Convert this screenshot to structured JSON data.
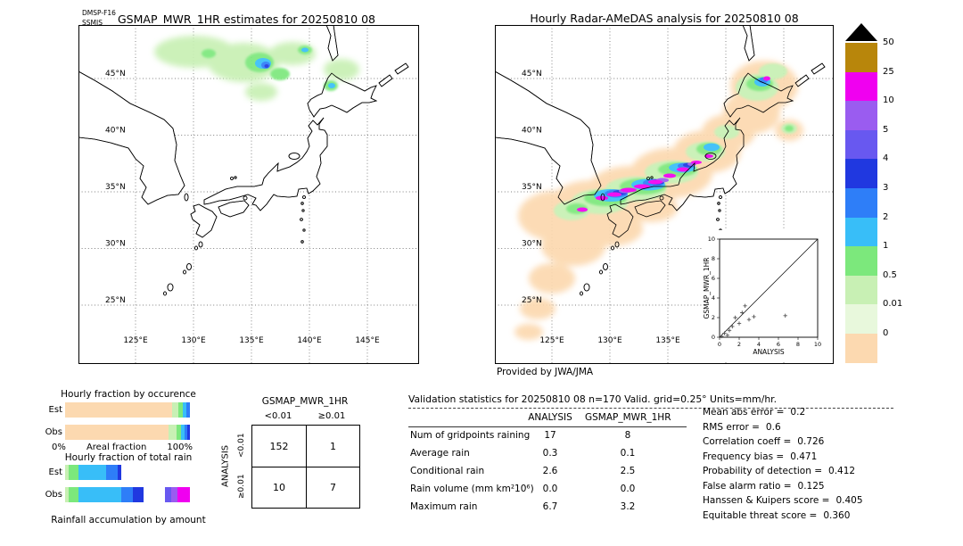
{
  "chart_data": [
    {
      "type": "map",
      "name": "gsmap-estimates-map",
      "title": "GSMAP_MWR_1HR estimates for 20250810 08",
      "satellite": "DMSP-F16",
      "sensor": "SSMIS",
      "lat_ticks": [
        "45°N",
        "40°N",
        "35°N",
        "30°N",
        "25°N"
      ],
      "lon_ticks": [
        "125°E",
        "130°E",
        "135°E",
        "140°E",
        "145°E"
      ],
      "units": "mm/hr"
    },
    {
      "type": "map",
      "name": "radar-amedas-map",
      "title": "Hourly Radar-AMeDAS analysis for 20250810 08",
      "credit": "Provided by JWA/JMA",
      "lat_ticks": [
        "45°N",
        "40°N",
        "35°N",
        "30°N",
        "25°N"
      ],
      "lon_ticks": [
        "125°E",
        "130°E",
        "135°E"
      ],
      "units": "mm/hr"
    },
    {
      "type": "scatter",
      "name": "analysis-vs-gsmap-scatter",
      "xlabel": "ANALYSIS",
      "ylabel": "GSMAP_MWR_1HR",
      "xlim": [
        0,
        10
      ],
      "ylim": [
        0,
        10
      ],
      "x_ticks": [
        0,
        2,
        4,
        6,
        8,
        10
      ],
      "y_ticks": [
        0,
        2,
        4,
        6,
        8,
        10
      ],
      "diagonal": true,
      "points": [
        [
          0.2,
          0.1
        ],
        [
          0.5,
          0.4
        ],
        [
          0.8,
          0.2
        ],
        [
          1.0,
          0.7
        ],
        [
          1.3,
          1.1
        ],
        [
          1.6,
          2.0
        ],
        [
          2.0,
          1.4
        ],
        [
          2.3,
          2.5
        ],
        [
          2.6,
          3.2
        ],
        [
          3.0,
          1.8
        ],
        [
          3.5,
          2.1
        ],
        [
          6.7,
          2.2
        ]
      ]
    },
    {
      "type": "bar",
      "subtype": "stacked_horizontal",
      "name": "hourly-fraction-by-occurrence",
      "title": "Hourly fraction by occurence",
      "xlabel": "Areal fraction",
      "axis_labels": [
        "0%",
        "100%"
      ],
      "rows": [
        {
          "label": "Est",
          "segments": [
            {
              "color": "#fcd9b0",
              "pct": 86
            },
            {
              "color": "#c8f0b4",
              "pct": 5
            },
            {
              "color": "#7ce87c",
              "pct": 3
            },
            {
              "color": "#38bef8",
              "pct": 3
            },
            {
              "color": "#2e7ef8",
              "pct": 3
            }
          ]
        },
        {
          "label": "Obs",
          "segments": [
            {
              "color": "#fcd9b0",
              "pct": 83
            },
            {
              "color": "#c8f0b4",
              "pct": 6
            },
            {
              "color": "#7ce87c",
              "pct": 4
            },
            {
              "color": "#38bef8",
              "pct": 3
            },
            {
              "color": "#2e7ef8",
              "pct": 2
            },
            {
              "color": "#2038e0",
              "pct": 2
            }
          ]
        }
      ]
    },
    {
      "type": "bar",
      "subtype": "stacked_horizontal",
      "name": "hourly-fraction-of-total-rain",
      "title": "Hourly fraction of total rain",
      "caption": "Rainfall accumulation by amount",
      "rows": [
        {
          "label": "Est",
          "segments": [
            {
              "color": "#c8f0b4",
              "pct": 3
            },
            {
              "color": "#7ce87c",
              "pct": 8
            },
            {
              "color": "#38bef8",
              "pct": 22
            },
            {
              "color": "#2e7ef8",
              "pct": 9
            },
            {
              "color": "#2038e0",
              "pct": 3
            },
            {
              "color": "#ffffff",
              "pct": 55
            }
          ]
        },
        {
          "label": "Obs",
          "segments": [
            {
              "color": "#c8f0b4",
              "pct": 3
            },
            {
              "color": "#7ce87c",
              "pct": 8
            },
            {
              "color": "#38bef8",
              "pct": 34
            },
            {
              "color": "#2e7ef8",
              "pct": 9
            },
            {
              "color": "#2038e0",
              "pct": 9
            },
            {
              "color": "#ffffff",
              "pct": 17
            },
            {
              "color": "#6858f0",
              "pct": 5
            },
            {
              "color": "#9a5cf0",
              "pct": 5
            },
            {
              "color": "#f000f0",
              "pct": 10
            }
          ]
        }
      ]
    },
    {
      "type": "table",
      "name": "contingency-table",
      "title": "GSMAP_MWR_1HR",
      "row_axis_label": "ANALYSIS",
      "col_headers": [
        "<0.01",
        "≥0.01"
      ],
      "row_headers": [
        "<0.01",
        "≥0.01"
      ],
      "values": [
        [
          152,
          1
        ],
        [
          10,
          7
        ]
      ]
    },
    {
      "type": "table",
      "name": "validation-statistics",
      "title": "Validation statistics for 20250810 08  n=170 Valid. grid=0.25° Units=mm/hr.",
      "col_headers": [
        "ANALYSIS",
        "GSMAP_MWR_1HR"
      ],
      "rows": [
        {
          "label": "Num of gridpoints raining",
          "analysis": "17",
          "gsmap": "8"
        },
        {
          "label": "Average rain",
          "analysis": "0.3",
          "gsmap": "0.1"
        },
        {
          "label": "Conditional rain",
          "analysis": "2.6",
          "gsmap": "2.5"
        },
        {
          "label": "Rain volume (mm km²10⁶)",
          "analysis": "0.0",
          "gsmap": "0.0"
        },
        {
          "label": "Maximum rain",
          "analysis": "6.7",
          "gsmap": "3.2"
        }
      ],
      "scores": [
        {
          "label": "Mean abs error =",
          "value": "0.2"
        },
        {
          "label": "RMS error =",
          "value": "0.6"
        },
        {
          "label": "Correlation coeff =",
          "value": "0.726"
        },
        {
          "label": "Frequency bias =",
          "value": "0.471"
        },
        {
          "label": "Probability of detection =",
          "value": "0.412"
        },
        {
          "label": "False alarm ratio =",
          "value": "0.125"
        },
        {
          "label": "Hanssen & Kuipers score =",
          "value": "0.405"
        },
        {
          "label": "Equitable threat score =",
          "value": "0.360"
        }
      ]
    },
    {
      "type": "colorbar",
      "name": "precip-colorbar",
      "units": "mm/hr",
      "labels": [
        "50",
        "25",
        "10",
        "5",
        "4",
        "3",
        "2",
        "1",
        "0.5",
        "0.01",
        "0"
      ],
      "colors": [
        "#b8860b",
        "#f000f0",
        "#9a5cf0",
        "#6858f0",
        "#2038e0",
        "#2e7ef8",
        "#38bef8",
        "#7ce87c",
        "#c8f0b4",
        "#e8f8dc",
        "#fcd9b0"
      ],
      "overflow_arrow_color": "#000000"
    }
  ]
}
